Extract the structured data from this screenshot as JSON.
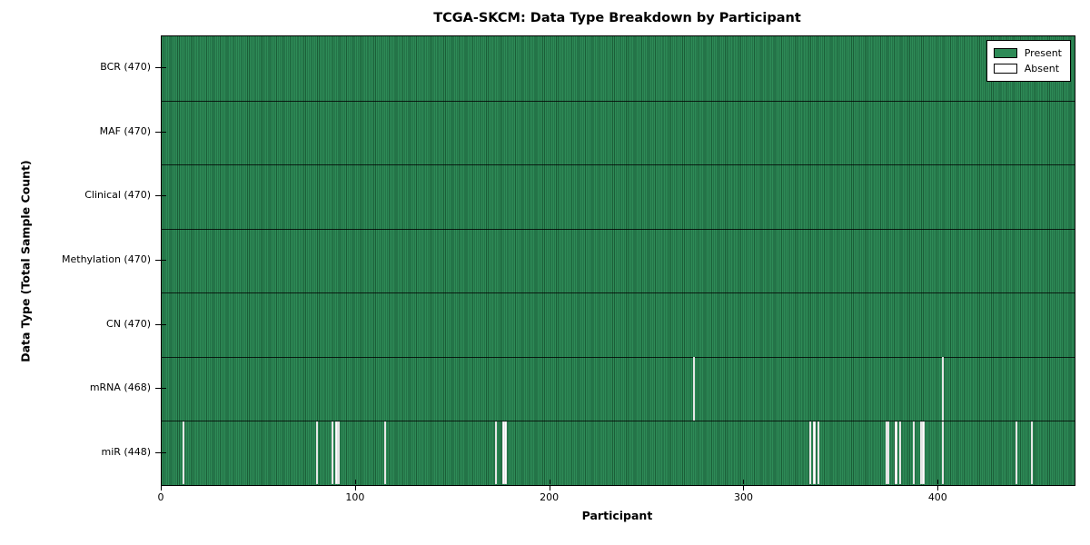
{
  "title": "TCGA-SKCM: Data Type Breakdown by Participant",
  "chart_data": {
    "type": "heatmap",
    "title": "TCGA-SKCM: Data Type Breakdown by Participant",
    "xlabel": "Participant",
    "ylabel": "Data Type (Total Sample Count)",
    "xlim": [
      0,
      470
    ],
    "x_ticks": [
      0,
      100,
      200,
      300,
      400
    ],
    "n_participants": 470,
    "grid": false,
    "legend_position": "upper right",
    "legend": [
      {
        "label": "Present",
        "color": "#2e8b57"
      },
      {
        "label": "Absent",
        "color": "#ffffff"
      }
    ],
    "colors": {
      "present_fill": "#2e8b57",
      "column_edge": "#1b5e38",
      "absent_fill": "#ffffff",
      "axis": "#000000",
      "background": "#ffffff"
    },
    "rows": [
      {
        "label": "BCR (470)",
        "data_type": "BCR",
        "present_count": 470,
        "absent_participants": []
      },
      {
        "label": "MAF (470)",
        "data_type": "MAF",
        "present_count": 470,
        "absent_participants": []
      },
      {
        "label": "Clinical (470)",
        "data_type": "Clinical",
        "present_count": 470,
        "absent_participants": []
      },
      {
        "label": "Methylation (470)",
        "data_type": "Methylation",
        "present_count": 470,
        "absent_participants": []
      },
      {
        "label": "CN (470)",
        "data_type": "CN",
        "present_count": 470,
        "absent_participants": []
      },
      {
        "label": "mRNA (468)",
        "data_type": "mRNA",
        "present_count": 468,
        "absent_participants": [
          274,
          402
        ]
      },
      {
        "label": "miR (448)",
        "data_type": "miR",
        "present_count": 448,
        "absent_participants": [
          11,
          80,
          88,
          90,
          91,
          115,
          172,
          176,
          177,
          334,
          336,
          338,
          373,
          374,
          378,
          380,
          387,
          391,
          392,
          402,
          440,
          448
        ]
      }
    ]
  }
}
